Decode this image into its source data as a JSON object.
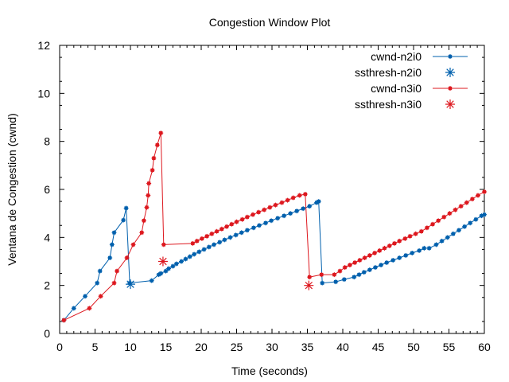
{
  "chart_data": {
    "type": "line",
    "title": "Congestion Window Plot",
    "xlabel": "Time (seconds)",
    "ylabel": "Ventana de Congestion (cwnd)",
    "xlim": [
      0,
      60
    ],
    "ylim": [
      0,
      12
    ],
    "x_ticks": [
      0,
      5,
      10,
      15,
      20,
      25,
      30,
      35,
      40,
      45,
      50,
      55,
      60
    ],
    "y_ticks": [
      0,
      2,
      4,
      6,
      8,
      10,
      12
    ],
    "grid": false,
    "legend_position": "top-right",
    "colors": {
      "n2": "#0060ad",
      "n3": "#dd181f"
    },
    "series": [
      {
        "name": "cwnd-n2i0",
        "kind": "line-points",
        "color": "#0060ad",
        "points": [
          [
            0.6,
            0.55
          ],
          [
            2.0,
            1.05
          ],
          [
            3.6,
            1.55
          ],
          [
            5.3,
            2.1
          ],
          [
            5.7,
            2.6
          ],
          [
            7.1,
            3.15
          ],
          [
            7.4,
            3.7
          ],
          [
            7.7,
            4.2
          ],
          [
            9.0,
            4.72
          ],
          [
            9.4,
            5.22
          ],
          [
            9.9,
            2.1
          ],
          [
            13.0,
            2.2
          ],
          [
            14.0,
            2.45
          ],
          [
            14.3,
            2.5
          ],
          [
            15.0,
            2.6
          ],
          [
            15.4,
            2.7
          ],
          [
            16.0,
            2.8
          ],
          [
            16.5,
            2.9
          ],
          [
            17.2,
            3.0
          ],
          [
            17.8,
            3.1
          ],
          [
            18.4,
            3.2
          ],
          [
            19.0,
            3.3
          ],
          [
            19.7,
            3.4
          ],
          [
            20.4,
            3.5
          ],
          [
            21.1,
            3.6
          ],
          [
            21.8,
            3.7
          ],
          [
            22.6,
            3.8
          ],
          [
            23.3,
            3.9
          ],
          [
            24.1,
            4.0
          ],
          [
            24.9,
            4.1
          ],
          [
            25.7,
            4.2
          ],
          [
            26.5,
            4.3
          ],
          [
            27.4,
            4.4
          ],
          [
            28.2,
            4.5
          ],
          [
            29.1,
            4.6
          ],
          [
            29.9,
            4.7
          ],
          [
            30.8,
            4.8
          ],
          [
            31.7,
            4.9
          ],
          [
            32.6,
            5.0
          ],
          [
            33.5,
            5.1
          ],
          [
            34.4,
            5.2
          ],
          [
            35.3,
            5.3
          ],
          [
            36.3,
            5.45
          ],
          [
            36.6,
            5.5
          ],
          [
            37.1,
            2.1
          ],
          [
            39.0,
            2.15
          ],
          [
            40.2,
            2.25
          ],
          [
            41.6,
            2.35
          ],
          [
            42.3,
            2.45
          ],
          [
            43.0,
            2.55
          ],
          [
            43.8,
            2.65
          ],
          [
            44.6,
            2.75
          ],
          [
            45.4,
            2.85
          ],
          [
            46.2,
            2.95
          ],
          [
            47.1,
            3.05
          ],
          [
            48.0,
            3.15
          ],
          [
            48.9,
            3.25
          ],
          [
            49.8,
            3.35
          ],
          [
            50.8,
            3.45
          ],
          [
            51.5,
            3.55
          ],
          [
            52.2,
            3.55
          ],
          [
            53.2,
            3.7
          ],
          [
            54.0,
            3.85
          ],
          [
            54.8,
            4.0
          ],
          [
            55.6,
            4.15
          ],
          [
            56.4,
            4.3
          ],
          [
            57.2,
            4.45
          ],
          [
            58.0,
            4.6
          ],
          [
            58.8,
            4.75
          ],
          [
            59.6,
            4.9
          ],
          [
            60.0,
            4.95
          ]
        ]
      },
      {
        "name": "ssthresh-n2i0",
        "kind": "points",
        "color": "#0060ad",
        "points": [
          [
            10.0,
            2.05
          ]
        ]
      },
      {
        "name": "cwnd-n3i0",
        "kind": "line-points",
        "color": "#dd181f",
        "points": [
          [
            0.6,
            0.55
          ],
          [
            4.2,
            1.05
          ],
          [
            5.8,
            1.55
          ],
          [
            7.7,
            2.1
          ],
          [
            8.1,
            2.6
          ],
          [
            9.5,
            3.15
          ],
          [
            10.4,
            3.7
          ],
          [
            11.6,
            4.2
          ],
          [
            11.9,
            4.7
          ],
          [
            12.3,
            5.25
          ],
          [
            12.5,
            5.75
          ],
          [
            12.6,
            6.25
          ],
          [
            13.1,
            6.8
          ],
          [
            13.3,
            7.3
          ],
          [
            13.8,
            7.85
          ],
          [
            14.3,
            8.35
          ],
          [
            14.7,
            3.7
          ],
          [
            18.8,
            3.75
          ],
          [
            19.4,
            3.85
          ],
          [
            20.1,
            3.95
          ],
          [
            20.8,
            4.05
          ],
          [
            21.5,
            4.15
          ],
          [
            22.2,
            4.25
          ],
          [
            22.9,
            4.35
          ],
          [
            23.6,
            4.45
          ],
          [
            24.3,
            4.55
          ],
          [
            25.0,
            4.65
          ],
          [
            25.8,
            4.75
          ],
          [
            26.5,
            4.85
          ],
          [
            27.3,
            4.95
          ],
          [
            28.1,
            5.05
          ],
          [
            28.9,
            5.15
          ],
          [
            29.7,
            5.25
          ],
          [
            30.5,
            5.35
          ],
          [
            31.4,
            5.45
          ],
          [
            32.2,
            5.55
          ],
          [
            33.0,
            5.65
          ],
          [
            33.9,
            5.75
          ],
          [
            34.7,
            5.8
          ],
          [
            35.3,
            2.35
          ],
          [
            37.0,
            2.45
          ],
          [
            38.8,
            2.45
          ],
          [
            39.6,
            2.6
          ],
          [
            40.3,
            2.75
          ],
          [
            41.0,
            2.85
          ],
          [
            41.7,
            2.95
          ],
          [
            42.4,
            3.05
          ],
          [
            43.1,
            3.15
          ],
          [
            43.8,
            3.25
          ],
          [
            44.5,
            3.35
          ],
          [
            45.2,
            3.45
          ],
          [
            45.9,
            3.55
          ],
          [
            46.6,
            3.65
          ],
          [
            47.3,
            3.75
          ],
          [
            48.0,
            3.85
          ],
          [
            48.8,
            3.95
          ],
          [
            49.5,
            4.05
          ],
          [
            50.3,
            4.15
          ],
          [
            51.1,
            4.25
          ],
          [
            51.9,
            4.4
          ],
          [
            52.7,
            4.55
          ],
          [
            53.5,
            4.7
          ],
          [
            54.3,
            4.85
          ],
          [
            55.1,
            5.0
          ],
          [
            55.9,
            5.15
          ],
          [
            56.7,
            5.3
          ],
          [
            57.5,
            5.45
          ],
          [
            58.3,
            5.6
          ],
          [
            59.1,
            5.75
          ],
          [
            60.0,
            5.9
          ]
        ]
      },
      {
        "name": "ssthresh-n3i0",
        "kind": "points",
        "color": "#dd181f",
        "points": [
          [
            14.6,
            3.0
          ],
          [
            35.2,
            2.0
          ]
        ]
      }
    ]
  }
}
